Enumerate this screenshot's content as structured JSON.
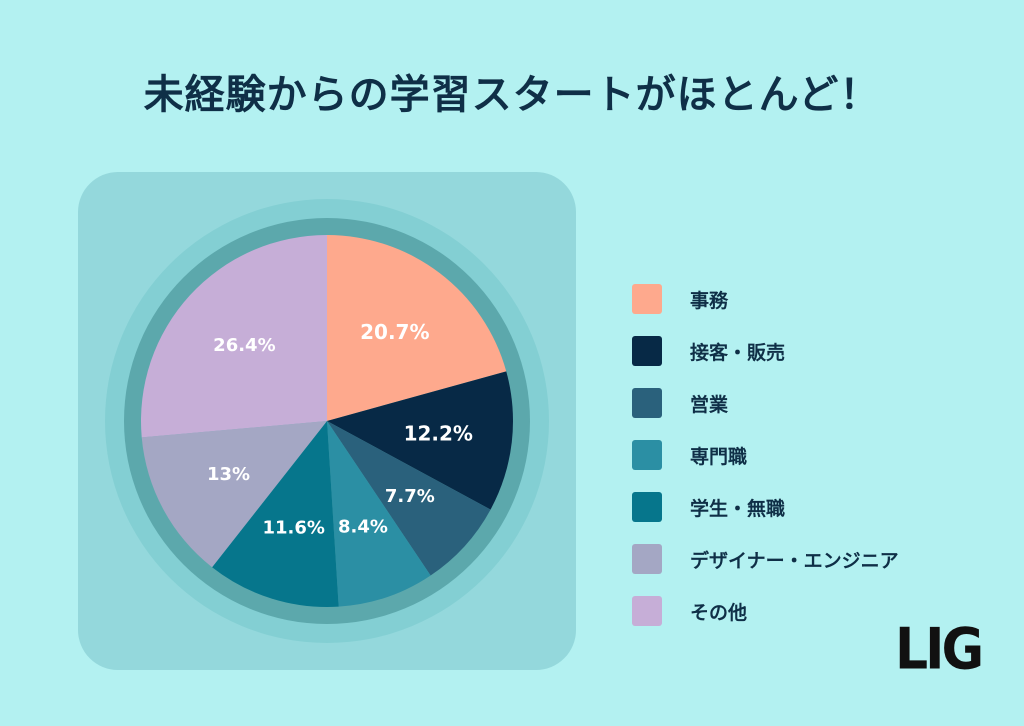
{
  "title": "未経験からの学習スタートがほとんど！",
  "logo": "LIG",
  "chart_data": {
    "type": "pie",
    "start_angle_deg": 0,
    "direction": "clockwise",
    "legend_position": "right",
    "slices": [
      {
        "label": "事務",
        "value": 20.7,
        "display": "20.7%",
        "color": "#fea98d",
        "label_color": "#ffffff"
      },
      {
        "label": "接客・販売",
        "value": 12.2,
        "display": "12.2%",
        "color": "#072946",
        "label_color": "#ffffff"
      },
      {
        "label": "営業",
        "value": 7.7,
        "display": "7.7%",
        "color": "#2a617c",
        "label_color": "#ffffff"
      },
      {
        "label": "専門職",
        "value": 8.4,
        "display": "8.4%",
        "color": "#2b8fa4",
        "label_color": "#ffffff"
      },
      {
        "label": "学生・無職",
        "value": 11.6,
        "display": "11.6%",
        "color": "#06768c",
        "label_color": "#ffffff"
      },
      {
        "label": "デザイナー・エンジニア",
        "value": 13,
        "display": "13%",
        "color": "#a4a7c4",
        "label_color": "#ffffff"
      },
      {
        "label": "その他",
        "value": 26.4,
        "display": "26.4%",
        "color": "#c6aed7",
        "label_color": "#ffffff"
      }
    ]
  }
}
